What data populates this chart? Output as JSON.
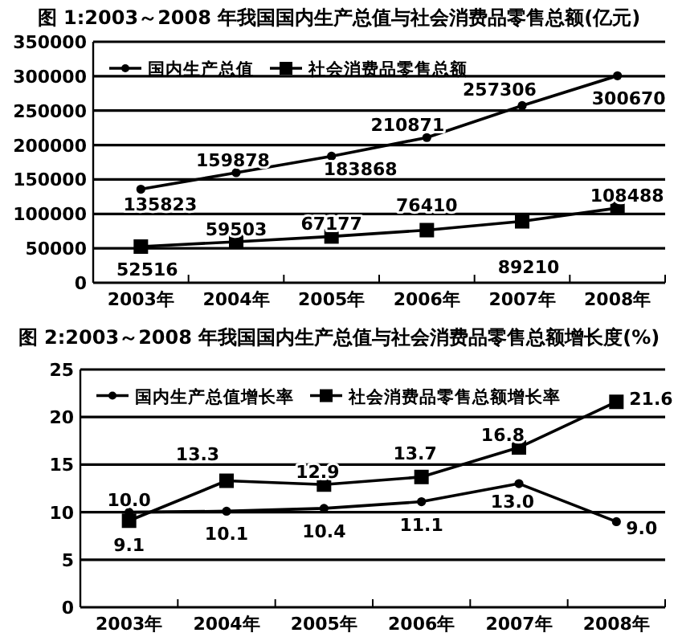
{
  "chart_data": [
    {
      "type": "line",
      "title": "图 1:2003～2008 年我国国内生产总值与社会消费品零售总额(亿元)",
      "categories": [
        "2003年",
        "2004年",
        "2005年",
        "2006年",
        "2007年",
        "2008年"
      ],
      "series": [
        {
          "name": "国内生产总值",
          "color": "#000000",
          "marker": "circle",
          "values": [
            135823,
            159878,
            183868,
            210871,
            257306,
            300670
          ]
        },
        {
          "name": "社会消费品零售总额",
          "color": "#000000",
          "marker": "square",
          "values": [
            52516,
            59503,
            67177,
            76410,
            89210,
            108488
          ]
        }
      ],
      "ylim": [
        0,
        350000
      ],
      "yticks": [
        0,
        50000,
        100000,
        150000,
        200000,
        250000,
        300000,
        350000
      ],
      "grid": "y",
      "legend": "top left",
      "data_labels": true
    },
    {
      "type": "line",
      "title": "图 2:2003～2008 年我国国内生产总值与社会消费品零售总额增长度(%)",
      "categories": [
        "2003年",
        "2004年",
        "2005年",
        "2006年",
        "2007年",
        "2008年"
      ],
      "series": [
        {
          "name": "国内生产总值增长率",
          "color": "#000000",
          "marker": "circle",
          "values": [
            10.0,
            10.1,
            10.4,
            11.1,
            13.0,
            9.0
          ],
          "value_labels": [
            "10.0",
            "10.1",
            "10.4",
            "11.1",
            "13.0",
            "9.0"
          ]
        },
        {
          "name": "社会消费品零售总额增长率",
          "color": "#000000",
          "marker": "square",
          "values": [
            9.1,
            13.3,
            12.9,
            13.7,
            16.8,
            21.6
          ]
        }
      ],
      "ylim": [
        0,
        25
      ],
      "yticks": [
        0,
        5,
        10,
        15,
        20,
        25
      ],
      "grid": "y",
      "legend": "top left",
      "data_labels": true
    }
  ]
}
